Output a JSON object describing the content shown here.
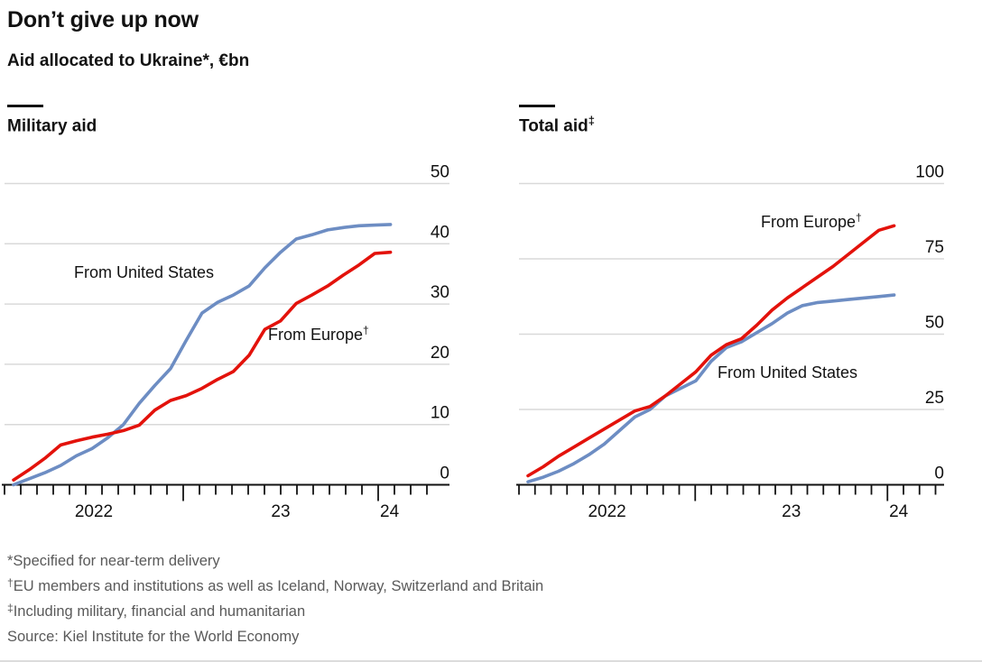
{
  "header": {
    "title": "Don’t give up now",
    "subtitle": "Aid allocated to Ukraine*, €bn"
  },
  "panels": [
    {
      "title": "Military aid",
      "title_sup": "",
      "labels": {
        "us": "From United States",
        "europe": "From Europe",
        "europe_sup": "†"
      }
    },
    {
      "title": "Total aid",
      "title_sup": "‡",
      "labels": {
        "us": "From United States",
        "europe": "From Europe",
        "europe_sup": "†"
      }
    }
  ],
  "colors": {
    "europe_red": "#e3120b",
    "us_blue": "#6d8dc3",
    "gridline": "#d9d9d9",
    "axis": "#121212",
    "footnote_gray": "#5a5a5a"
  },
  "chart_data": [
    {
      "type": "line",
      "title": "Military aid",
      "unit": "€bn",
      "ylim": [
        0,
        50
      ],
      "yticks": [
        0,
        10,
        20,
        30,
        40,
        50
      ],
      "grid": "horizontal",
      "legend_position": "inline-annotations",
      "x_year_labels": [
        "2022",
        "23",
        "24"
      ],
      "x": [
        "2022-02",
        "2022-03",
        "2022-04",
        "2022-05",
        "2022-06",
        "2022-07",
        "2022-08",
        "2022-09",
        "2022-10",
        "2022-11",
        "2022-12",
        "2023-01",
        "2023-02",
        "2023-03",
        "2023-04",
        "2023-05",
        "2023-06",
        "2023-07",
        "2023-08",
        "2023-09",
        "2023-10",
        "2023-11",
        "2023-12",
        "2024-01",
        "2024-02"
      ],
      "series": [
        {
          "name": "From United States",
          "color_key": "us_blue",
          "values": [
            0,
            1,
            2,
            3.2,
            4.8,
            6,
            7.8,
            10,
            13.5,
            16.5,
            19.3,
            24,
            28.5,
            30.3,
            31.5,
            33,
            36,
            38.6,
            40.8,
            41.5,
            42.3,
            42.7,
            43,
            43.1,
            43.2
          ]
        },
        {
          "name": "From Europe",
          "color_key": "europe_red",
          "values": [
            0.8,
            2.5,
            4.4,
            6.6,
            7.3,
            7.9,
            8.4,
            9,
            9.9,
            12.4,
            14,
            14.8,
            16,
            17.5,
            18.8,
            21.5,
            25.8,
            27.2,
            30.1,
            31.5,
            33,
            34.8,
            36.5,
            38.4,
            38.6
          ]
        }
      ]
    },
    {
      "type": "line",
      "title": "Total aid (military, financial and humanitarian)",
      "unit": "€bn",
      "ylim": [
        0,
        100
      ],
      "yticks": [
        0,
        25,
        50,
        75,
        100
      ],
      "grid": "horizontal",
      "legend_position": "inline-annotations",
      "x_year_labels": [
        "2022",
        "23",
        "24"
      ],
      "x": [
        "2022-02",
        "2022-03",
        "2022-04",
        "2022-05",
        "2022-06",
        "2022-07",
        "2022-08",
        "2022-09",
        "2022-10",
        "2022-11",
        "2022-12",
        "2023-01",
        "2023-02",
        "2023-03",
        "2023-04",
        "2023-05",
        "2023-06",
        "2023-07",
        "2023-08",
        "2023-09",
        "2023-10",
        "2023-11",
        "2023-12",
        "2024-01",
        "2024-02"
      ],
      "series": [
        {
          "name": "From United States",
          "color_key": "us_blue",
          "values": [
            1,
            2.5,
            4.5,
            7,
            10,
            13.5,
            18,
            22.5,
            25,
            29.5,
            32,
            34.5,
            41,
            45.5,
            47.5,
            50.5,
            53.5,
            57,
            59.5,
            60.5,
            61,
            61.5,
            62,
            62.5,
            63
          ]
        },
        {
          "name": "From Europe",
          "color_key": "europe_red",
          "values": [
            3,
            6,
            9.5,
            12.5,
            15.5,
            18.5,
            21.5,
            24.5,
            26,
            29.5,
            33.5,
            37.5,
            43,
            46.5,
            48.5,
            53,
            58,
            62,
            65.5,
            69,
            72.5,
            76.5,
            80.5,
            84.5,
            86
          ]
        }
      ]
    }
  ],
  "footnotes": [
    {
      "marker": "*",
      "text": "Specified for near-term delivery"
    },
    {
      "marker": "†",
      "text": "EU members and institutions as well as Iceland, Norway, Switzerland and Britain"
    },
    {
      "marker": "‡",
      "text": "Including military, financial and humanitarian"
    }
  ],
  "source": "Source: Kiel Institute for the World Economy"
}
